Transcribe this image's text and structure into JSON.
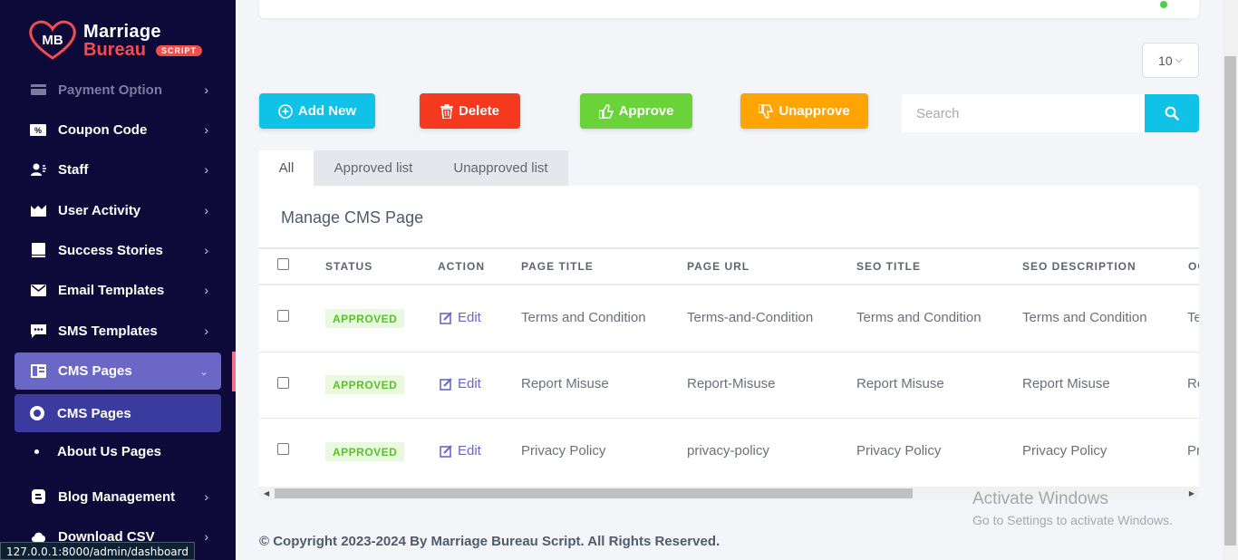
{
  "brand": {
    "line1": "Marriage",
    "line2": "Bureau",
    "tag": "SCRIPT",
    "monogram": "MB"
  },
  "sidebar": {
    "items": [
      {
        "label": "Payment Option",
        "icon": "payment-icon"
      },
      {
        "label": "Coupon Code",
        "icon": "coupon-icon"
      },
      {
        "label": "Staff",
        "icon": "staff-icon"
      },
      {
        "label": "User Activity",
        "icon": "activity-icon"
      },
      {
        "label": "Success Stories",
        "icon": "book-icon"
      },
      {
        "label": "Email Templates",
        "icon": "email-icon"
      },
      {
        "label": "SMS Templates",
        "icon": "sms-icon"
      },
      {
        "label": "CMS Pages",
        "icon": "cms-icon"
      },
      {
        "label": "CMS Pages",
        "icon": "ring-icon"
      },
      {
        "label": "About Us Pages",
        "icon": "bullet-icon"
      },
      {
        "label": "Blog Management",
        "icon": "blog-icon"
      },
      {
        "label": "Download CSV",
        "icon": "download-icon"
      }
    ]
  },
  "status_url": "127.0.0.1:8000/admin/dashboard",
  "page_size": "10",
  "toolbar": {
    "add": "Add New",
    "delete": "Delete",
    "approve": "Approve",
    "unapprove": "Unapprove",
    "search_placeholder": "Search"
  },
  "tabs": {
    "all": "All",
    "approved": "Approved list",
    "unapproved": "Unapproved list"
  },
  "card_title": "Manage CMS Page",
  "table": {
    "headers": [
      "STATUS",
      "ACTION",
      "PAGE TITLE",
      "PAGE URL",
      "SEO TITLE",
      "SEO DESCRIPTION",
      "OG"
    ],
    "rows": [
      {
        "status": "APPROVED",
        "action": "Edit",
        "title": "Terms and Condition",
        "url": "Terms-and-Condition",
        "seo_title": "Terms and Condition",
        "seo_desc": "Terms and Condition",
        "og": "Te"
      },
      {
        "status": "APPROVED",
        "action": "Edit",
        "title": "Report Misuse",
        "url": "Report-Misuse",
        "seo_title": "Report Misuse",
        "seo_desc": "Report Misuse",
        "og": "Re"
      },
      {
        "status": "APPROVED",
        "action": "Edit",
        "title": "Privacy Policy",
        "url": "privacy-policy",
        "seo_title": "Privacy Policy",
        "seo_desc": "Privacy Policy",
        "og": "Pr"
      }
    ]
  },
  "watermark": {
    "line1": "Activate Windows",
    "line2": "Go to Settings to activate Windows."
  },
  "footer": "© Copyright 2023-2024 By Marriage Bureau Script. All Rights Reserved.",
  "colors": {
    "sidebar_bg": "#0d0a3a",
    "accent": "#6a67c7",
    "add": "#10c1e8",
    "delete": "#f5391f",
    "approve": "#6bd33a",
    "unapprove": "#ffa405"
  }
}
